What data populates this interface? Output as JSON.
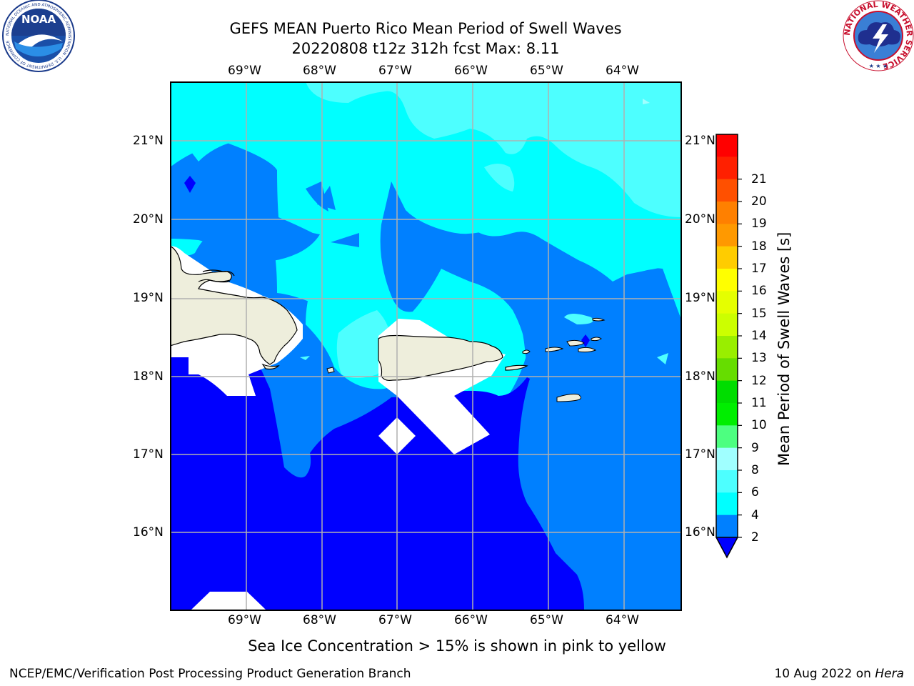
{
  "header": {
    "title_line1": "GEFS MEAN Puerto Rico Mean Period of Swell Waves",
    "title_line2": "20220808 t12z 312h fcst   Max: 8.11"
  },
  "logos": {
    "noaa": {
      "text": "NOAA",
      "ring_text": "NATIONAL OCEANIC AND ATMOSPHERIC ADMINISTRATION · U.S. DEPARTMENT OF COMMERCE",
      "icon": "noaa-logo-icon"
    },
    "nws": {
      "ring_text": "NATIONAL WEATHER SERVICE",
      "icon": "nws-logo-icon"
    }
  },
  "map": {
    "lon_ticks": [
      "69°W",
      "68°W",
      "67°W",
      "66°W",
      "65°W",
      "64°W"
    ],
    "lat_ticks": [
      "21°N",
      "20°N",
      "19°N",
      "18°N",
      "17°N",
      "16°N"
    ],
    "extent": {
      "lon_min": -70.0,
      "lon_max": -63.25,
      "lat_min": 15.0,
      "lat_max": 21.75
    },
    "colors": {
      "land": "#eeeedc",
      "grid": "#b0b0b0"
    }
  },
  "colorbar": {
    "label": "Mean Period of Swell Waves [s]",
    "ticks": [
      "2",
      "4",
      "6",
      "8",
      "9",
      "10",
      "11",
      "12",
      "13",
      "14",
      "15",
      "16",
      "17",
      "18",
      "19",
      "20",
      "21"
    ],
    "colors": [
      "#0080ff",
      "#00ffff",
      "#4dffff",
      "#a0ffff",
      "#4dff80",
      "#00ee00",
      "#00dd00",
      "#66dd00",
      "#99ee00",
      "#ccff00",
      "#e5ff00",
      "#ffff00",
      "#ffcc00",
      "#ff9900",
      "#ff8000",
      "#ff5000",
      "#ff2000",
      "#ff0000"
    ],
    "under_color": "#0000ff"
  },
  "note": "Sea Ice Concentration > 15% is shown in pink to yellow",
  "footer": {
    "left": "NCEP/EMC/Verification Post Processing Product Generation Branch",
    "right_date": "10 Aug 2022 on",
    "right_machine": "Hera"
  }
}
